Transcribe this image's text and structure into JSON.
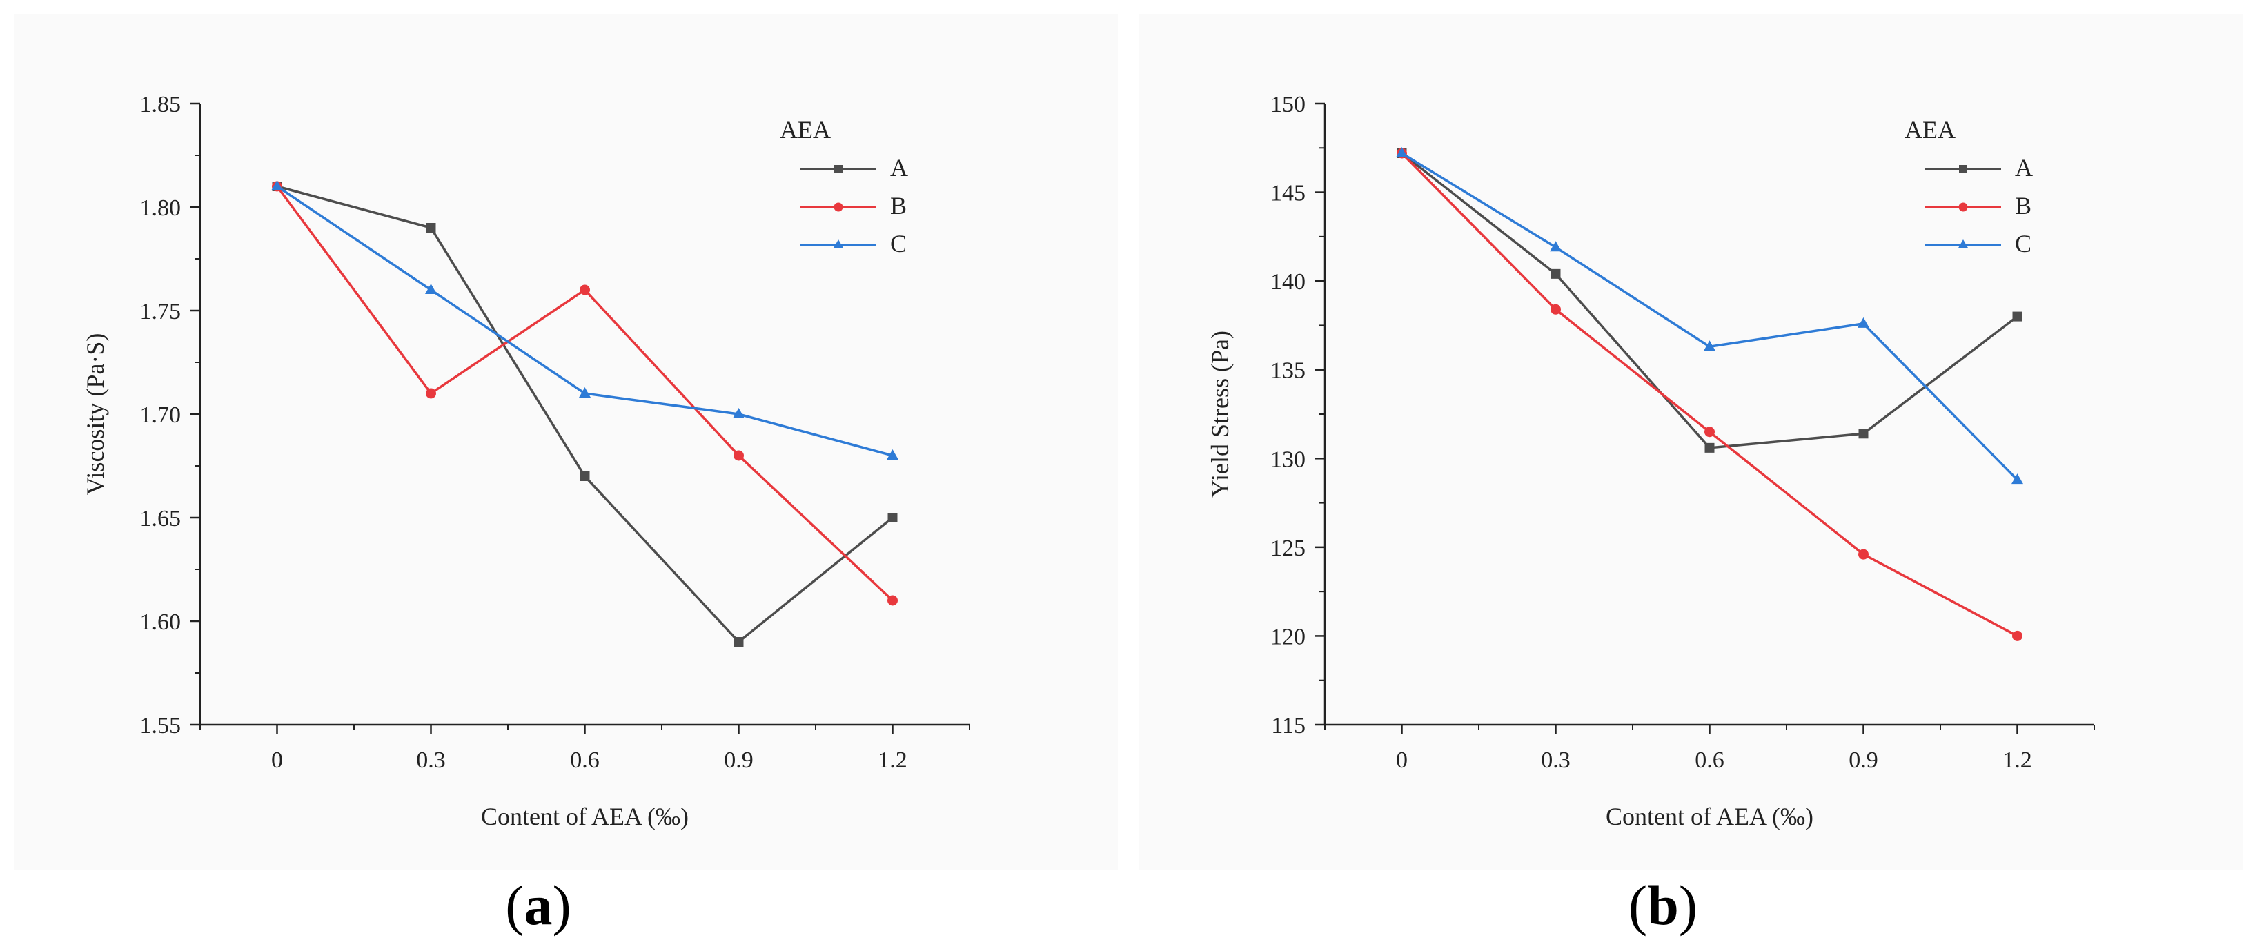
{
  "chart_data": [
    {
      "type": "line",
      "panel_label": "a",
      "title": "",
      "xlabel": "Content of AEA (‰)",
      "ylabel": "Viscosity (Pa·S)",
      "categories": [
        "0",
        "0.3",
        "0.6",
        "0.9",
        "1.2"
      ],
      "x": [
        0,
        0.3,
        0.6,
        0.9,
        1.2
      ],
      "xlim": [
        -0.15,
        1.35
      ],
      "ylim": [
        1.55,
        1.85
      ],
      "yticks": [
        1.55,
        1.6,
        1.65,
        1.7,
        1.75,
        1.8,
        1.85
      ],
      "ytick_labels": [
        "1.55",
        "1.60",
        "1.65",
        "1.70",
        "1.75",
        "1.80",
        "1.85"
      ],
      "legend_title": "AEA",
      "legend_position": "top-right",
      "series": [
        {
          "name": "A",
          "values": [
            1.81,
            1.79,
            1.67,
            1.59,
            1.65
          ],
          "color": "#4d4d4d",
          "marker": "square"
        },
        {
          "name": "B",
          "values": [
            1.81,
            1.71,
            1.76,
            1.68,
            1.61
          ],
          "color": "#e8383d",
          "marker": "circle"
        },
        {
          "name": "C",
          "values": [
            1.81,
            1.76,
            1.71,
            1.7,
            1.68
          ],
          "color": "#2e7bd6",
          "marker": "triangle"
        }
      ]
    },
    {
      "type": "line",
      "panel_label": "b",
      "title": "",
      "xlabel": "Content of AEA (‰)",
      "ylabel": "Yield Stress (Pa)",
      "categories": [
        "0",
        "0.3",
        "0.6",
        "0.9",
        "1.2"
      ],
      "x": [
        0,
        0.3,
        0.6,
        0.9,
        1.2
      ],
      "xlim": [
        -0.15,
        1.35
      ],
      "ylim": [
        115,
        150
      ],
      "yticks": [
        115,
        120,
        125,
        130,
        135,
        140,
        145,
        150
      ],
      "ytick_labels": [
        "115",
        "120",
        "125",
        "130",
        "135",
        "140",
        "145",
        "150"
      ],
      "legend_title": "AEA",
      "legend_position": "top-right",
      "series": [
        {
          "name": "A",
          "values": [
            147.2,
            140.4,
            130.6,
            131.4,
            138.0
          ],
          "color": "#4d4d4d",
          "marker": "square"
        },
        {
          "name": "B",
          "values": [
            147.2,
            138.4,
            131.5,
            124.6,
            120.0
          ],
          "color": "#e8383d",
          "marker": "circle"
        },
        {
          "name": "C",
          "values": [
            147.2,
            141.9,
            136.3,
            137.6,
            128.8
          ],
          "color": "#2e7bd6",
          "marker": "triangle"
        }
      ]
    }
  ]
}
